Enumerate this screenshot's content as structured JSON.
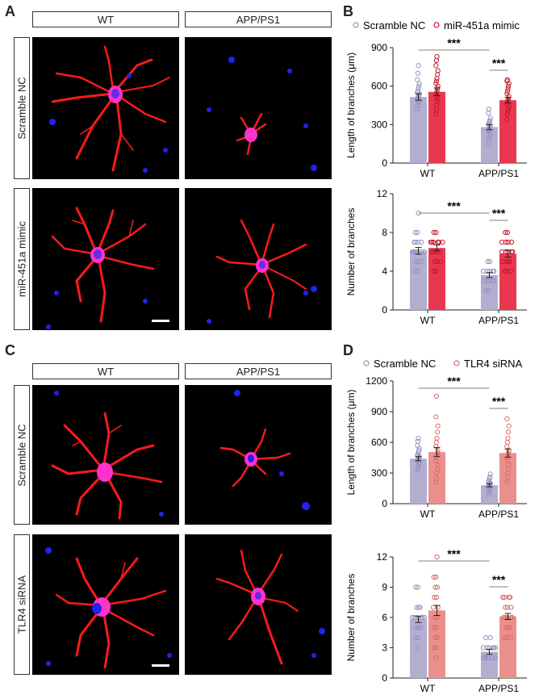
{
  "panels": {
    "A": {
      "letter": "A",
      "col_labels": [
        "WT",
        "APP/PS1"
      ],
      "row_labels": [
        "Scramble NC",
        "miR-451a mimic"
      ]
    },
    "B": {
      "letter": "B"
    },
    "C": {
      "letter": "C",
      "col_labels": [
        "WT",
        "APP/PS1"
      ],
      "row_labels": [
        "Scramble NC",
        "TLR4 siRNA"
      ]
    },
    "D": {
      "letter": "D"
    }
  },
  "colors": {
    "control_fill": "#b3aed0",
    "control_dot": "#9893c4",
    "b_treat_fill": "#e8384f",
    "b_treat_dot": "#c9182f",
    "d_treat_fill": "#ea908c",
    "d_treat_dot": "#d86f6c",
    "dendrite": "#ff1a1a",
    "soma": "#ff33cc",
    "nucleus": "#2222ee"
  },
  "chart_data": [
    {
      "id": "B-length",
      "type": "bar",
      "ylabel": "Length of branches (μm)",
      "categories": [
        "WT",
        "APP/PS1"
      ],
      "ylim": [
        0,
        900
      ],
      "yticks": [
        "0",
        "300",
        "600",
        "900"
      ],
      "legend": [
        "Scramble NC",
        "miR-451a mimic"
      ],
      "series": [
        {
          "name": "Scramble NC",
          "values": [
            515,
            280
          ],
          "err": [
            25,
            20
          ],
          "points": [
            [
              420,
              450,
              470,
              480,
              490,
              500,
              510,
              520,
              530,
              540,
              550,
              560,
              580,
              600,
              620,
              650,
              700,
              760
            ],
            [
              150,
              180,
              200,
              220,
              240,
              250,
              260,
              270,
              280,
              290,
              300,
              310,
              320,
              330,
              350,
              390,
              420
            ]
          ]
        },
        {
          "name": "miR-451a mimic",
          "values": [
            555,
            490
          ],
          "err": [
            30,
            22
          ],
          "points": [
            [
              380,
              420,
              450,
              480,
              500,
              520,
              540,
              560,
              580,
              600,
              620,
              640,
              660,
              690,
              720,
              760,
              800,
              830
            ],
            [
              340,
              380,
              400,
              420,
              440,
              460,
              480,
              490,
              500,
              520,
              540,
              560,
              580,
              600,
              620,
              640,
              650
            ]
          ]
        }
      ],
      "significance": [
        {
          "label": "***",
          "from": "WT-Scramble NC",
          "to": "APP/PS1-Scramble NC"
        },
        {
          "label": "***",
          "from": "APP/PS1-Scramble NC",
          "to": "APP/PS1-miR-451a mimic"
        }
      ]
    },
    {
      "id": "B-number",
      "type": "bar",
      "ylabel": "Number of branches",
      "categories": [
        "WT",
        "APP/PS1"
      ],
      "ylim": [
        0,
        12
      ],
      "yticks": [
        "0",
        "4",
        "8",
        "12"
      ],
      "series": [
        {
          "name": "Scramble NC",
          "values": [
            6.1,
            3.6
          ],
          "err": [
            0.35,
            0.25
          ],
          "points": [
            [
              4,
              4,
              5,
              5,
              5,
              6,
              6,
              6,
              6,
              6,
              6,
              7,
              7,
              7,
              7,
              8,
              8,
              10
            ],
            [
              2,
              2,
              3,
              3,
              3,
              3,
              3,
              4,
              4,
              4,
              4,
              4,
              4,
              5,
              5
            ]
          ]
        },
        {
          "name": "miR-451a mimic",
          "values": [
            6.4,
            5.8
          ],
          "err": [
            0.3,
            0.35
          ],
          "points": [
            [
              4,
              4,
              5,
              5,
              5,
              6,
              6,
              6,
              6,
              7,
              7,
              7,
              7,
              7,
              7,
              8,
              8
            ],
            [
              4,
              4,
              4,
              5,
              5,
              5,
              5,
              6,
              6,
              6,
              6,
              6,
              7,
              7,
              7,
              7,
              8,
              8
            ]
          ]
        }
      ],
      "significance": [
        {
          "label": "***",
          "from": "WT-Scramble NC",
          "to": "APP/PS1-Scramble NC"
        },
        {
          "label": "***",
          "from": "APP/PS1-Scramble NC",
          "to": "APP/PS1-miR-451a mimic"
        }
      ]
    },
    {
      "id": "D-length",
      "type": "bar",
      "ylabel": "Length of branches (μm)",
      "categories": [
        "WT",
        "APP/PS1"
      ],
      "ylim": [
        0,
        1200
      ],
      "yticks": [
        "0",
        "300",
        "600",
        "900",
        "1200"
      ],
      "legend": [
        "Scramble NC",
        "TLR4 siRNA"
      ],
      "series": [
        {
          "name": "Scramble NC",
          "values": [
            440,
            180
          ],
          "err": [
            20,
            15
          ],
          "points": [
            [
              330,
              350,
              370,
              390,
              400,
              420,
              430,
              440,
              450,
              460,
              470,
              480,
              500,
              520,
              540,
              570,
              610,
              640
            ],
            [
              90,
              110,
              120,
              140,
              150,
              160,
              170,
              180,
              190,
              200,
              210,
              220,
              240,
              260,
              290
            ]
          ]
        },
        {
          "name": "TLR4 siRNA",
          "values": [
            505,
            495
          ],
          "err": [
            45,
            40
          ],
          "points": [
            [
              210,
              250,
              300,
              340,
              380,
              420,
              450,
              480,
              500,
              520,
              560,
              600,
              640,
              700,
              760,
              850,
              1050
            ],
            [
              210,
              260,
              300,
              340,
              380,
              420,
              450,
              480,
              500,
              520,
              560,
              600,
              640,
              700,
              760,
              830
            ]
          ]
        }
      ],
      "significance": [
        {
          "label": "***",
          "from": "WT-Scramble NC",
          "to": "APP/PS1-Scramble NC"
        },
        {
          "label": "***",
          "from": "APP/PS1-Scramble NC",
          "to": "APP/PS1-TLR4 siRNA"
        }
      ]
    },
    {
      "id": "D-number",
      "type": "bar",
      "ylabel": "Number of branches",
      "categories": [
        "WT",
        "APP/PS1"
      ],
      "ylim": [
        0,
        12
      ],
      "yticks": [
        "0",
        "3",
        "6",
        "9",
        "12"
      ],
      "series": [
        {
          "name": "Scramble NC",
          "values": [
            5.8,
            2.6
          ],
          "err": [
            0.3,
            0.25
          ],
          "points": [
            [
              3,
              4,
              4,
              5,
              5,
              5,
              6,
              6,
              6,
              6,
              6,
              6,
              6,
              7,
              7,
              7,
              9,
              9
            ],
            [
              2,
              2,
              2,
              2,
              2,
              2,
              2,
              3,
              3,
              3,
              3,
              3,
              3,
              3,
              4,
              4
            ]
          ]
        },
        {
          "name": "TLR4 siRNA",
          "values": [
            6.7,
            6.1
          ],
          "err": [
            0.5,
            0.3
          ],
          "points": [
            [
              2,
              3,
              3,
              4,
              4,
              5,
              5,
              6,
              6,
              7,
              7,
              8,
              8,
              9,
              9,
              10,
              10,
              12
            ],
            [
              4,
              4,
              4,
              5,
              5,
              5,
              6,
              6,
              6,
              6,
              6,
              7,
              7,
              7,
              8,
              8,
              8,
              8
            ]
          ]
        }
      ],
      "significance": [
        {
          "label": "***",
          "from": "WT-Scramble NC",
          "to": "APP/PS1-Scramble NC"
        },
        {
          "label": "***",
          "from": "APP/PS1-Scramble NC",
          "to": "APP/PS1-TLR4 siRNA"
        }
      ]
    }
  ]
}
